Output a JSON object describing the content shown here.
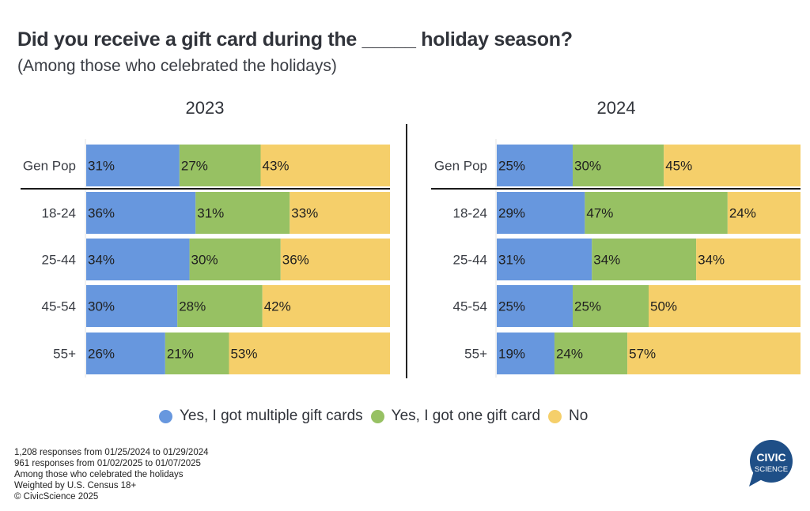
{
  "header": {
    "title": "Did you receive a gift card during the _____ holiday season?",
    "subtitle": "(Among those who celebrated the holidays)"
  },
  "colors": {
    "multiple": "#6797de",
    "one": "#97c163",
    "no": "#f5cf6a",
    "logo": "#1f4f87"
  },
  "chart_data": {
    "type": "bar",
    "orientation": "horizontal-stacked-100",
    "title": "Did you receive a gift card during the _____ holiday season?",
    "subtitle": "(Among those who celebrated the holidays)",
    "series_names": [
      "Yes, I got multiple gift cards",
      "Yes, I got one gift card",
      "No"
    ],
    "legend_position": "bottom-center",
    "xlim": [
      0,
      100
    ],
    "panels": [
      {
        "title": "2023",
        "categories": [
          "Gen Pop",
          "18-24",
          "25-44",
          "45-54",
          "55+"
        ],
        "series": [
          {
            "name": "Yes, I got multiple gift cards",
            "values": [
              31,
              36,
              34,
              30,
              26
            ]
          },
          {
            "name": "Yes, I got one gift card",
            "values": [
              27,
              31,
              30,
              28,
              21
            ]
          },
          {
            "name": "No",
            "values": [
              43,
              33,
              36,
              42,
              53
            ]
          }
        ]
      },
      {
        "title": "2024",
        "categories": [
          "Gen Pop",
          "18-24",
          "25-44",
          "45-54",
          "55+"
        ],
        "series": [
          {
            "name": "Yes, I got multiple gift cards",
            "values": [
              25,
              29,
              31,
              25,
              19
            ]
          },
          {
            "name": "Yes, I got one gift card",
            "values": [
              30,
              47,
              34,
              25,
              24
            ]
          },
          {
            "name": "No",
            "values": [
              45,
              24,
              34,
              50,
              57
            ]
          }
        ]
      }
    ]
  },
  "legend": {
    "items": [
      {
        "label": "Yes, I got multiple gift cards",
        "color": "#6797de"
      },
      {
        "label": "Yes, I got one gift card",
        "color": "#97c163"
      },
      {
        "label": "No",
        "color": "#f5cf6a"
      }
    ]
  },
  "footnote": {
    "lines": [
      "1,208 responses from 01/25/2024 to 01/29/2024",
      "961 responses from 01/02/2025 to 01/07/2025",
      "Among those who celebrated the holidays",
      "Weighted by U.S. Census 18+",
      "© CivicScience 2025"
    ]
  },
  "logo": {
    "line1": "CIVIC",
    "line2": "SCIENCE"
  }
}
